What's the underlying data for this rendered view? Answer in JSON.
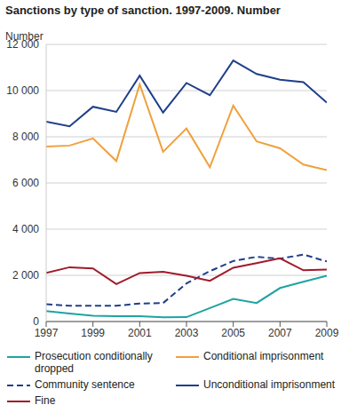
{
  "chart_data": {
    "type": "line",
    "title": "Sanctions by type of sanction. 1997-2009. Number",
    "y_label": "Number",
    "x": [
      1997,
      1998,
      1999,
      2000,
      2001,
      2002,
      2003,
      2004,
      2005,
      2006,
      2007,
      2008,
      2009
    ],
    "xlim": [
      1997,
      2009
    ],
    "xticks": [
      1997,
      1999,
      2001,
      2003,
      2005,
      2007,
      2009
    ],
    "ylim": [
      0,
      12000
    ],
    "yticks": [
      0,
      {
        "value": 2000,
        "label": "2 000"
      },
      {
        "value": 4000,
        "label": "4 000"
      },
      {
        "value": 6000,
        "label": "6 000"
      },
      {
        "value": 8000,
        "label": "8 000"
      },
      {
        "value": 10000,
        "label": "10 000"
      },
      {
        "value": 12000,
        "label": "12 000"
      }
    ],
    "grid": true,
    "legend": "bottom",
    "series": [
      {
        "name": "Prosecution conditionally dropped",
        "color": "#1fa3a0",
        "line_style": "solid",
        "values": [
          450,
          350,
          250,
          230,
          230,
          180,
          190,
          580,
          980,
          800,
          1450,
          1720,
          1980
        ]
      },
      {
        "name": "Conditional imprisonment",
        "color": "#f0a03c",
        "line_style": "solid",
        "values": [
          7580,
          7620,
          7930,
          6950,
          10270,
          7350,
          8360,
          6680,
          9350,
          7800,
          7500,
          6800,
          6560
        ]
      },
      {
        "name": "Community sentence",
        "color": "#1f3f8a",
        "line_style": "dashed",
        "values": [
          750,
          680,
          680,
          680,
          780,
          800,
          1650,
          2180,
          2620,
          2800,
          2720,
          2900,
          2600
        ]
      },
      {
        "name": "Unconditional imprisonment",
        "color": "#1f3f8a",
        "line_style": "solid",
        "values": [
          8650,
          8450,
          9300,
          9080,
          10650,
          9050,
          10330,
          9800,
          11300,
          10720,
          10470,
          10370,
          9480
        ]
      },
      {
        "name": "Fine",
        "color": "#a11a2b",
        "line_style": "solid",
        "values": [
          2100,
          2350,
          2300,
          1620,
          2100,
          2150,
          1980,
          1760,
          2330,
          2530,
          2740,
          2220,
          2250
        ]
      }
    ]
  }
}
